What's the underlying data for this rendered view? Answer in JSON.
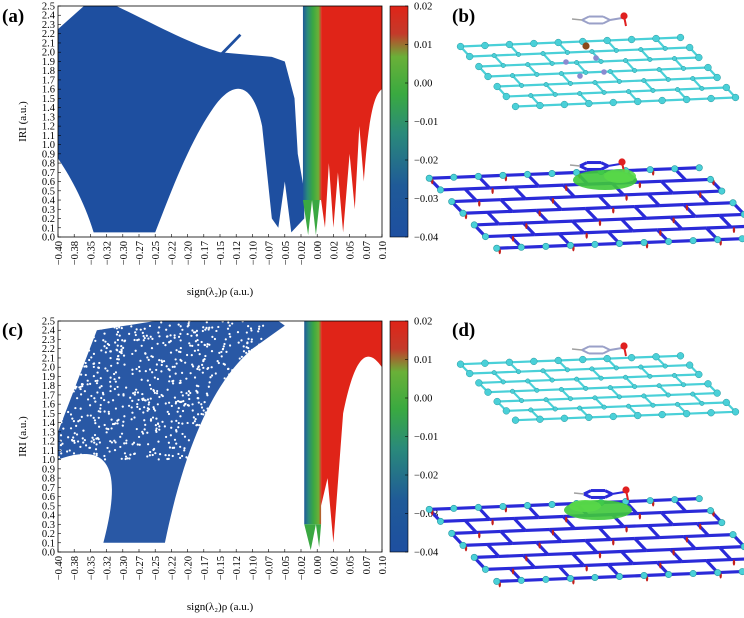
{
  "chart_data": [
    {
      "panel": "(a)",
      "type": "scatter",
      "xlabel": "sign(λ₂)ρ (a.u.)",
      "ylabel": "IRI (a.u.)",
      "xlim": [
        -0.4,
        0.1
      ],
      "ylim": [
        0.0,
        2.5
      ],
      "xticks": [
        "-0.40",
        "-0.38",
        "-0.35",
        "-0.32",
        "-0.30",
        "-0.27",
        "-0.25",
        "-0.22",
        "-0.20",
        "-0.17",
        "-0.15",
        "-0.12",
        "-0.10",
        "-0.07",
        "-0.05",
        "-0.02",
        "0.00",
        "0.02",
        "0.05",
        "0.07",
        "0.10"
      ],
      "xtick_values": [
        -0.4,
        -0.375,
        -0.35,
        -0.325,
        -0.3,
        -0.275,
        -0.25,
        -0.225,
        -0.2,
        -0.175,
        -0.15,
        -0.125,
        -0.1,
        -0.075,
        -0.05,
        -0.025,
        0.0,
        0.025,
        0.05,
        0.075,
        0.1
      ],
      "yticks": [
        "0.0",
        "0.1",
        "0.2",
        "0.3",
        "0.4",
        "0.5",
        "0.6",
        "0.7",
        "0.8",
        "0.9",
        "1.0",
        "1.1",
        "1.2",
        "1.3",
        "1.4",
        "1.5",
        "1.6",
        "1.7",
        "1.8",
        "1.9",
        "2.0",
        "2.1",
        "2.2",
        "2.3",
        "2.4",
        "2.5"
      ],
      "colorbar": {
        "range": [
          -0.04,
          0.02
        ],
        "ticks": [
          "0.02",
          "0.01",
          "0.00",
          "-0.01",
          "-0.02",
          "-0.03",
          "-0.04"
        ],
        "colors": [
          "#1e4fa0",
          "#2a7a8a",
          "#3aa842",
          "#5cb83a",
          "#c43a2a",
          "#e02418"
        ]
      },
      "regions": [
        {
          "name": "blue lower-left fan",
          "x": [
            -0.4,
            -0.02
          ],
          "y": [
            0.0,
            2.5
          ]
        },
        {
          "name": "green band",
          "x": [
            -0.02,
            0.005
          ],
          "y": [
            0.0,
            2.5
          ]
        },
        {
          "name": "red band",
          "x": [
            0.005,
            0.1
          ],
          "y": [
            0.0,
            2.5
          ]
        }
      ]
    },
    {
      "panel": "(c)",
      "type": "scatter",
      "xlabel": "sign(λ₂)ρ (a.u.)",
      "ylabel": "IRI (a.u.)",
      "xlim": [
        -0.4,
        0.1
      ],
      "ylim": [
        0.0,
        2.5
      ],
      "xticks": [
        "-0.40",
        "-0.38",
        "-0.35",
        "-0.32",
        "-0.30",
        "-0.27",
        "-0.25",
        "-0.22",
        "-0.20",
        "-0.17",
        "-0.15",
        "-0.12",
        "-0.10",
        "-0.07",
        "-0.05",
        "-0.02",
        "0.00",
        "0.02",
        "0.05",
        "0.07",
        "0.10"
      ],
      "xtick_values": [
        -0.4,
        -0.375,
        -0.35,
        -0.325,
        -0.3,
        -0.275,
        -0.25,
        -0.225,
        -0.2,
        -0.175,
        -0.15,
        -0.125,
        -0.1,
        -0.075,
        -0.05,
        -0.025,
        0.0,
        0.025,
        0.05,
        0.075,
        0.1
      ],
      "yticks": [
        "0.0",
        "0.1",
        "0.2",
        "0.3",
        "0.4",
        "0.5",
        "0.6",
        "0.7",
        "0.8",
        "0.9",
        "1.0",
        "1.1",
        "1.2",
        "1.3",
        "1.4",
        "1.5",
        "1.6",
        "1.7",
        "1.8",
        "1.9",
        "2.0",
        "2.1",
        "2.2",
        "2.3",
        "2.4",
        "2.5"
      ],
      "colorbar": {
        "range": [
          -0.04,
          0.02
        ],
        "ticks": [
          "0.02",
          "0.01",
          "0.00",
          "-0.01",
          "-0.02",
          "-0.03",
          "-0.04"
        ],
        "colors": [
          "#1e4fa0",
          "#2a7a8a",
          "#3aa842",
          "#5cb83a",
          "#c43a2a",
          "#e02418"
        ]
      },
      "regions": [
        {
          "name": "blue scattered fan",
          "x": [
            -0.4,
            -0.04
          ],
          "y": [
            0.0,
            2.5
          ]
        },
        {
          "name": "green band",
          "x": [
            -0.02,
            0.005
          ],
          "y": [
            0.0,
            2.5
          ]
        },
        {
          "name": "red band",
          "x": [
            0.005,
            0.1
          ],
          "y": [
            0.0,
            2.5
          ]
        }
      ]
    }
  ],
  "panels": {
    "a": "(a)",
    "b": "(b)",
    "c": "(c)",
    "d": "(d)"
  },
  "structure_colors": {
    "carbon": "#4ad0d8",
    "bond_surface": "#2a2ad8",
    "vdw_surface": "#3ec83a",
    "repulsion": "#c4201c",
    "nitrogen": "#8a8ad0",
    "metal": "#8a4a1a",
    "oxygen": "#e02020"
  }
}
